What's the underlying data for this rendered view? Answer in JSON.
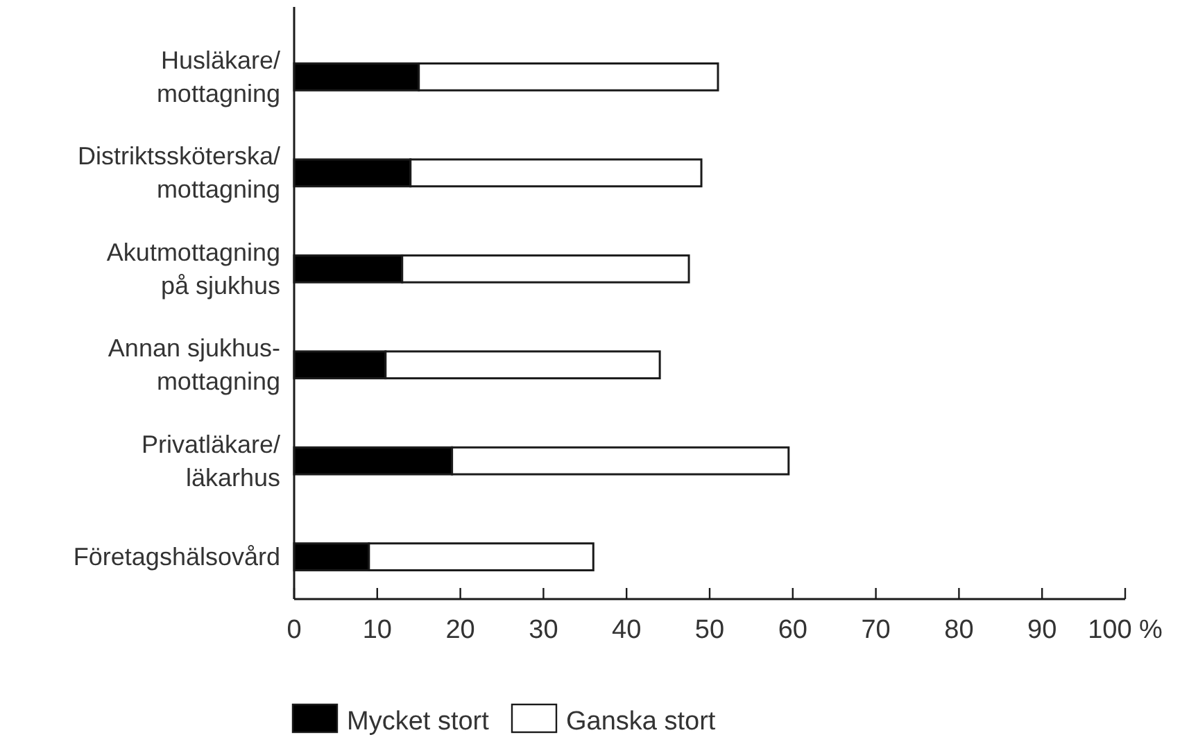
{
  "chart_data": {
    "type": "bar",
    "orientation": "horizontal",
    "stacked": true,
    "categories": [
      "Husläkare/\nmottagning",
      "Distriktssköterska/\nmottagning",
      "Akutmottagning\npå sjukhus",
      "Annan sjukhus-\nmottagning",
      "Privatläkare/\nläkarhus",
      "Företagshälsovård"
    ],
    "series": [
      {
        "name": "Mycket stort",
        "color": "#000000",
        "values": [
          15,
          14,
          13,
          11,
          19,
          9
        ]
      },
      {
        "name": "Ganska stort",
        "color": "#ffffff",
        "values": [
          36,
          35,
          34.5,
          33,
          40.5,
          27
        ]
      }
    ],
    "xlim": [
      0,
      100
    ],
    "xticks": [
      0,
      10,
      20,
      30,
      40,
      50,
      60,
      70,
      80,
      90,
      {
        "value": 100,
        "label": "100 %"
      }
    ],
    "grid": false,
    "legend": "bottom"
  }
}
